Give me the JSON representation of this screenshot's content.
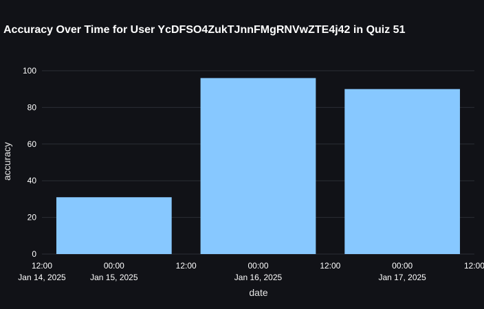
{
  "chart_data": {
    "type": "bar",
    "title": "Accuracy Over Time for User YcDFSO4ZukTJnnFMgRNVwZTE4j42 in Quiz 51",
    "xlabel": "date",
    "ylabel": "accuracy",
    "x": [
      "2025-01-15",
      "2025-01-16",
      "2025-01-17"
    ],
    "values": [
      31,
      96,
      90
    ],
    "ylim": [
      0,
      100
    ],
    "xlim": [
      "2025-01-14 12:00",
      "2025-01-17 12:00"
    ],
    "yticks": [
      "0",
      "20",
      "40",
      "60",
      "80",
      "100"
    ],
    "xticks": [
      {
        "line1": "12:00",
        "line2": "Jan 14, 2025"
      },
      {
        "line1": "00:00",
        "line2": "Jan 15, 2025"
      },
      {
        "line1": "12:00",
        "line2": ""
      },
      {
        "line1": "00:00",
        "line2": "Jan 16, 2025"
      },
      {
        "line1": "12:00",
        "line2": ""
      },
      {
        "line1": "00:00",
        "line2": "Jan 17, 2025"
      },
      {
        "line1": "12:00",
        "line2": ""
      }
    ],
    "bar_color": "#87c8ff",
    "grid": true,
    "background": "#111217"
  }
}
